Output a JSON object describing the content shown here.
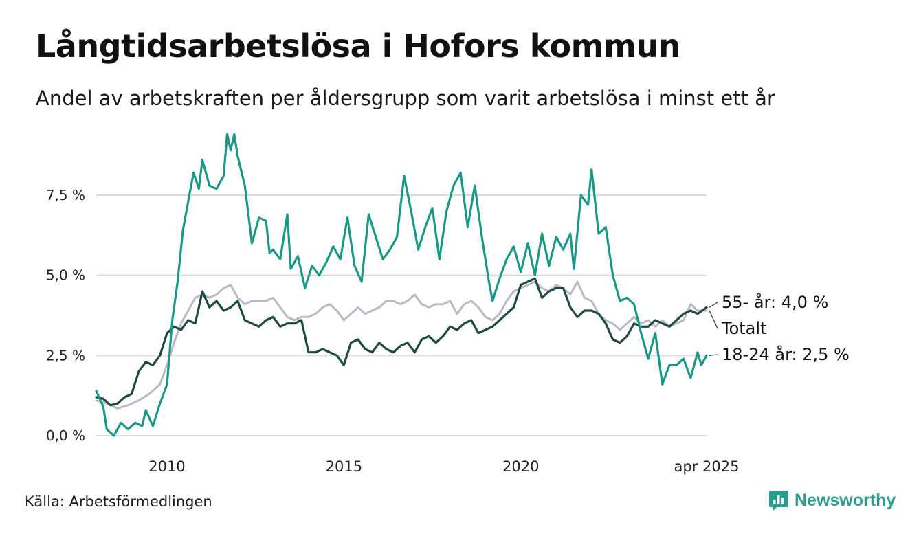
{
  "title": "Långtidsarbetslösa i Hofors kommun",
  "subtitle": "Andel av arbetskraften per åldersgrupp som varit arbetslösa i minst ett år",
  "source": "Källa: Arbetsförmedlingen",
  "brand": {
    "name": "Newsworthy",
    "icon": "newsworthy-chart-logo-icon",
    "color": "#2a9d8f"
  },
  "chart_data": {
    "type": "line",
    "x_range": [
      2008.0,
      2025.25
    ],
    "ylim": [
      0,
      9.6
    ],
    "y_ticks": [
      {
        "value": 0,
        "label": "0,0 %"
      },
      {
        "value": 2.5,
        "label": "2,5 %"
      },
      {
        "value": 5,
        "label": "5,0 %"
      },
      {
        "value": 7.5,
        "label": "7,5 %"
      }
    ],
    "x_ticks": [
      {
        "value": 2010,
        "label": "2010"
      },
      {
        "value": 2015,
        "label": "2015"
      },
      {
        "value": 2020,
        "label": "2020"
      },
      {
        "value": 2025.25,
        "label": "apr 2025"
      }
    ],
    "grid": true,
    "series": [
      {
        "name": "Totalt",
        "role": "total",
        "color": "#bcb8c6",
        "end_label": "Totalt",
        "points": [
          [
            2008.0,
            1.1
          ],
          [
            2008.3,
            1.0
          ],
          [
            2008.6,
            0.85
          ],
          [
            2008.9,
            0.95
          ],
          [
            2009.2,
            1.1
          ],
          [
            2009.5,
            1.3
          ],
          [
            2009.8,
            1.6
          ],
          [
            2010.0,
            2.2
          ],
          [
            2010.2,
            2.9
          ],
          [
            2010.4,
            3.5
          ],
          [
            2010.6,
            3.9
          ],
          [
            2010.8,
            4.3
          ],
          [
            2011.0,
            4.4
          ],
          [
            2011.2,
            4.3
          ],
          [
            2011.4,
            4.4
          ],
          [
            2011.6,
            4.6
          ],
          [
            2011.8,
            4.7
          ],
          [
            2012.0,
            4.3
          ],
          [
            2012.2,
            4.1
          ],
          [
            2012.4,
            4.2
          ],
          [
            2012.6,
            4.2
          ],
          [
            2012.8,
            4.2
          ],
          [
            2013.0,
            4.3
          ],
          [
            2013.2,
            4.0
          ],
          [
            2013.4,
            3.7
          ],
          [
            2013.6,
            3.6
          ],
          [
            2013.8,
            3.7
          ],
          [
            2014.0,
            3.7
          ],
          [
            2014.2,
            3.8
          ],
          [
            2014.4,
            4.0
          ],
          [
            2014.6,
            4.1
          ],
          [
            2014.8,
            3.9
          ],
          [
            2015.0,
            3.6
          ],
          [
            2015.2,
            3.8
          ],
          [
            2015.4,
            4.0
          ],
          [
            2015.6,
            3.8
          ],
          [
            2015.8,
            3.9
          ],
          [
            2016.0,
            4.0
          ],
          [
            2016.2,
            4.2
          ],
          [
            2016.4,
            4.2
          ],
          [
            2016.6,
            4.1
          ],
          [
            2016.8,
            4.2
          ],
          [
            2017.0,
            4.4
          ],
          [
            2017.2,
            4.1
          ],
          [
            2017.4,
            4.0
          ],
          [
            2017.6,
            4.1
          ],
          [
            2017.8,
            4.1
          ],
          [
            2018.0,
            4.2
          ],
          [
            2018.2,
            3.8
          ],
          [
            2018.4,
            4.1
          ],
          [
            2018.6,
            4.2
          ],
          [
            2018.8,
            4.0
          ],
          [
            2019.0,
            3.7
          ],
          [
            2019.2,
            3.6
          ],
          [
            2019.4,
            3.8
          ],
          [
            2019.6,
            4.2
          ],
          [
            2019.8,
            4.5
          ],
          [
            2020.0,
            4.6
          ],
          [
            2020.2,
            4.7
          ],
          [
            2020.4,
            4.8
          ],
          [
            2020.6,
            4.6
          ],
          [
            2020.8,
            4.5
          ],
          [
            2021.0,
            4.7
          ],
          [
            2021.2,
            4.6
          ],
          [
            2021.4,
            4.4
          ],
          [
            2021.6,
            4.8
          ],
          [
            2021.8,
            4.3
          ],
          [
            2022.0,
            4.2
          ],
          [
            2022.2,
            3.8
          ],
          [
            2022.4,
            3.6
          ],
          [
            2022.6,
            3.5
          ],
          [
            2022.8,
            3.3
          ],
          [
            2023.0,
            3.5
          ],
          [
            2023.2,
            3.7
          ],
          [
            2023.4,
            3.5
          ],
          [
            2023.6,
            3.6
          ],
          [
            2023.8,
            3.4
          ],
          [
            2024.0,
            3.6
          ],
          [
            2024.2,
            3.4
          ],
          [
            2024.4,
            3.5
          ],
          [
            2024.6,
            3.6
          ],
          [
            2024.8,
            4.1
          ],
          [
            2025.0,
            3.9
          ],
          [
            2025.25,
            3.9
          ]
        ]
      },
      {
        "name": "55- år",
        "role": "older",
        "color": "#1f4a40",
        "end_value": 4.0,
        "end_label": "55- år: 4,0 %",
        "points": [
          [
            2008.0,
            1.2
          ],
          [
            2008.2,
            1.15
          ],
          [
            2008.4,
            0.95
          ],
          [
            2008.6,
            1.0
          ],
          [
            2008.8,
            1.2
          ],
          [
            2009.0,
            1.3
          ],
          [
            2009.2,
            2.0
          ],
          [
            2009.4,
            2.3
          ],
          [
            2009.6,
            2.2
          ],
          [
            2009.8,
            2.5
          ],
          [
            2010.0,
            3.2
          ],
          [
            2010.2,
            3.4
          ],
          [
            2010.4,
            3.3
          ],
          [
            2010.6,
            3.6
          ],
          [
            2010.8,
            3.5
          ],
          [
            2011.0,
            4.5
          ],
          [
            2011.2,
            4.0
          ],
          [
            2011.4,
            4.2
          ],
          [
            2011.6,
            3.9
          ],
          [
            2011.8,
            4.0
          ],
          [
            2012.0,
            4.2
          ],
          [
            2012.2,
            3.6
          ],
          [
            2012.4,
            3.5
          ],
          [
            2012.6,
            3.4
          ],
          [
            2012.8,
            3.6
          ],
          [
            2013.0,
            3.7
          ],
          [
            2013.2,
            3.4
          ],
          [
            2013.4,
            3.5
          ],
          [
            2013.6,
            3.5
          ],
          [
            2013.8,
            3.6
          ],
          [
            2014.0,
            2.6
          ],
          [
            2014.2,
            2.6
          ],
          [
            2014.4,
            2.7
          ],
          [
            2014.6,
            2.6
          ],
          [
            2014.8,
            2.5
          ],
          [
            2015.0,
            2.2
          ],
          [
            2015.2,
            2.9
          ],
          [
            2015.4,
            3.0
          ],
          [
            2015.6,
            2.7
          ],
          [
            2015.8,
            2.6
          ],
          [
            2016.0,
            2.9
          ],
          [
            2016.2,
            2.7
          ],
          [
            2016.4,
            2.6
          ],
          [
            2016.6,
            2.8
          ],
          [
            2016.8,
            2.9
          ],
          [
            2017.0,
            2.6
          ],
          [
            2017.2,
            3.0
          ],
          [
            2017.4,
            3.1
          ],
          [
            2017.6,
            2.9
          ],
          [
            2017.8,
            3.1
          ],
          [
            2018.0,
            3.4
          ],
          [
            2018.2,
            3.3
          ],
          [
            2018.4,
            3.5
          ],
          [
            2018.6,
            3.6
          ],
          [
            2018.8,
            3.2
          ],
          [
            2019.0,
            3.3
          ],
          [
            2019.2,
            3.4
          ],
          [
            2019.4,
            3.6
          ],
          [
            2019.6,
            3.8
          ],
          [
            2019.8,
            4.0
          ],
          [
            2020.0,
            4.7
          ],
          [
            2020.2,
            4.8
          ],
          [
            2020.4,
            4.9
          ],
          [
            2020.6,
            4.3
          ],
          [
            2020.8,
            4.5
          ],
          [
            2021.0,
            4.6
          ],
          [
            2021.2,
            4.6
          ],
          [
            2021.4,
            4.0
          ],
          [
            2021.6,
            3.7
          ],
          [
            2021.8,
            3.9
          ],
          [
            2022.0,
            3.9
          ],
          [
            2022.2,
            3.8
          ],
          [
            2022.4,
            3.5
          ],
          [
            2022.6,
            3.0
          ],
          [
            2022.8,
            2.9
          ],
          [
            2023.0,
            3.1
          ],
          [
            2023.2,
            3.5
          ],
          [
            2023.4,
            3.4
          ],
          [
            2023.6,
            3.4
          ],
          [
            2023.8,
            3.6
          ],
          [
            2024.0,
            3.5
          ],
          [
            2024.2,
            3.4
          ],
          [
            2024.4,
            3.6
          ],
          [
            2024.6,
            3.8
          ],
          [
            2024.8,
            3.9
          ],
          [
            2025.0,
            3.8
          ],
          [
            2025.25,
            4.0
          ]
        ]
      },
      {
        "name": "18-24 år",
        "role": "young",
        "color": "#1a9a86",
        "end_value": 2.5,
        "end_label": "18-24 år: 2,5 %",
        "points": [
          [
            2008.0,
            1.4
          ],
          [
            2008.2,
            0.9
          ],
          [
            2008.3,
            0.2
          ],
          [
            2008.5,
            0.0
          ],
          [
            2008.7,
            0.4
          ],
          [
            2008.9,
            0.2
          ],
          [
            2009.1,
            0.4
          ],
          [
            2009.3,
            0.3
          ],
          [
            2009.4,
            0.8
          ],
          [
            2009.6,
            0.3
          ],
          [
            2009.8,
            1.0
          ],
          [
            2010.0,
            1.6
          ],
          [
            2010.15,
            3.6
          ],
          [
            2010.3,
            4.8
          ],
          [
            2010.45,
            6.4
          ],
          [
            2010.6,
            7.3
          ],
          [
            2010.75,
            8.2
          ],
          [
            2010.9,
            7.7
          ],
          [
            2011.0,
            8.6
          ],
          [
            2011.2,
            7.8
          ],
          [
            2011.4,
            7.7
          ],
          [
            2011.6,
            8.1
          ],
          [
            2011.7,
            9.4
          ],
          [
            2011.8,
            8.9
          ],
          [
            2011.9,
            9.4
          ],
          [
            2012.0,
            8.7
          ],
          [
            2012.2,
            7.8
          ],
          [
            2012.4,
            6.0
          ],
          [
            2012.6,
            6.8
          ],
          [
            2012.8,
            6.7
          ],
          [
            2012.9,
            5.7
          ],
          [
            2013.0,
            5.8
          ],
          [
            2013.2,
            5.5
          ],
          [
            2013.4,
            6.9
          ],
          [
            2013.5,
            5.2
          ],
          [
            2013.7,
            5.6
          ],
          [
            2013.9,
            4.6
          ],
          [
            2014.1,
            5.3
          ],
          [
            2014.3,
            5.0
          ],
          [
            2014.5,
            5.4
          ],
          [
            2014.7,
            5.9
          ],
          [
            2014.9,
            5.5
          ],
          [
            2015.1,
            6.8
          ],
          [
            2015.3,
            5.3
          ],
          [
            2015.5,
            4.8
          ],
          [
            2015.7,
            6.9
          ],
          [
            2015.9,
            6.2
          ],
          [
            2016.1,
            5.5
          ],
          [
            2016.3,
            5.8
          ],
          [
            2016.5,
            6.2
          ],
          [
            2016.7,
            8.1
          ],
          [
            2016.9,
            7.0
          ],
          [
            2017.1,
            5.8
          ],
          [
            2017.3,
            6.5
          ],
          [
            2017.5,
            7.1
          ],
          [
            2017.7,
            5.5
          ],
          [
            2017.9,
            7.0
          ],
          [
            2018.1,
            7.8
          ],
          [
            2018.3,
            8.2
          ],
          [
            2018.5,
            6.5
          ],
          [
            2018.7,
            7.8
          ],
          [
            2018.9,
            6.2
          ],
          [
            2019.1,
            4.8
          ],
          [
            2019.2,
            4.2
          ],
          [
            2019.4,
            4.9
          ],
          [
            2019.6,
            5.5
          ],
          [
            2019.8,
            5.9
          ],
          [
            2020.0,
            5.1
          ],
          [
            2020.2,
            6.0
          ],
          [
            2020.4,
            5.0
          ],
          [
            2020.6,
            6.3
          ],
          [
            2020.8,
            5.3
          ],
          [
            2021.0,
            6.2
          ],
          [
            2021.2,
            5.8
          ],
          [
            2021.4,
            6.3
          ],
          [
            2021.5,
            5.2
          ],
          [
            2021.7,
            7.5
          ],
          [
            2021.9,
            7.2
          ],
          [
            2022.0,
            8.3
          ],
          [
            2022.2,
            6.3
          ],
          [
            2022.4,
            6.5
          ],
          [
            2022.6,
            5.0
          ],
          [
            2022.8,
            4.2
          ],
          [
            2023.0,
            4.3
          ],
          [
            2023.2,
            4.1
          ],
          [
            2023.4,
            3.2
          ],
          [
            2023.6,
            2.4
          ],
          [
            2023.8,
            3.2
          ],
          [
            2024.0,
            1.6
          ],
          [
            2024.2,
            2.2
          ],
          [
            2024.4,
            2.2
          ],
          [
            2024.6,
            2.4
          ],
          [
            2024.8,
            1.8
          ],
          [
            2025.0,
            2.6
          ],
          [
            2025.1,
            2.2
          ],
          [
            2025.25,
            2.5
          ]
        ]
      }
    ]
  }
}
